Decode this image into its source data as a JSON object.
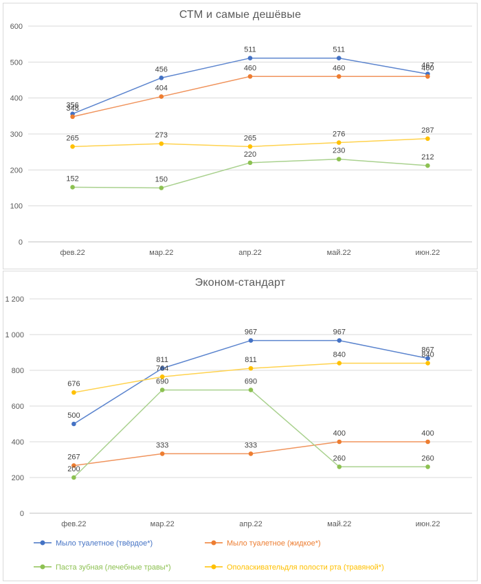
{
  "page": {
    "background": "#FFFFFF",
    "panel_border": "#D9D9D9",
    "grid_color": "#D9D9D9",
    "axis_line_color": "#BFBFBF",
    "title_color": "#595959",
    "tick_color": "#595959",
    "data_label_color": "#404040"
  },
  "categories": [
    "фев.22",
    "мар.22",
    "апр.22",
    "май.22",
    "июн.22"
  ],
  "legend": {
    "items": [
      {
        "label": "Мыло туалетное (твёрдое*)",
        "color": "#4472C4"
      },
      {
        "label": "Мыло туалетное (жидкое*)",
        "color": "#ED7D31"
      },
      {
        "label": "Паста зубная (лечебные травы*)",
        "color": "#8DC152"
      },
      {
        "label": "Ополаскивательдля полости рта (травяной*)",
        "color": "#FFC000"
      }
    ]
  },
  "chart_data": [
    {
      "type": "line",
      "title": "СТМ и самые дешёвые",
      "categories": [
        "фев.22",
        "мар.22",
        "апр.22",
        "май.22",
        "июн.22"
      ],
      "ylim": [
        0,
        600
      ],
      "ytick_step": 100,
      "yticks": [
        "0",
        "100",
        "200",
        "300",
        "400",
        "500",
        "600"
      ],
      "grid": true,
      "legend_position": "none",
      "series": [
        {
          "name": "Мыло туалетное (твёрдое*)",
          "color": "#4472C4",
          "line_color": "#5B84CE",
          "values": [
            356,
            456,
            511,
            511,
            467
          ]
        },
        {
          "name": "Мыло туалетное (жидкое*)",
          "color": "#ED7D31",
          "line_color": "#F0935C",
          "values": [
            348,
            404,
            460,
            460,
            460
          ]
        },
        {
          "name": "Паста зубная (лечебные травы*)",
          "color": "#8DC152",
          "line_color": "#A9D18E",
          "values": [
            152,
            150,
            220,
            230,
            212
          ]
        },
        {
          "name": "Ополаскивательдля полости рта (травяной*)",
          "color": "#FFC000",
          "line_color": "#FFD24D",
          "values": [
            265,
            273,
            265,
            276,
            287
          ]
        }
      ]
    },
    {
      "type": "line",
      "title": "Эконом-стандарт",
      "categories": [
        "фев.22",
        "мар.22",
        "апр.22",
        "май.22",
        "июн.22"
      ],
      "ylim": [
        0,
        1200
      ],
      "ytick_step": 200,
      "yticks": [
        "0",
        "200",
        "400",
        "600",
        "800",
        "1 000",
        "1 200"
      ],
      "grid": true,
      "legend_position": "bottom",
      "series": [
        {
          "name": "Мыло туалетное (твёрдое*)",
          "color": "#4472C4",
          "line_color": "#5B84CE",
          "values": [
            500,
            811,
            967,
            967,
            867
          ]
        },
        {
          "name": "Мыло туалетное (жидкое*)",
          "color": "#ED7D31",
          "line_color": "#F0935C",
          "values": [
            267,
            333,
            333,
            400,
            400
          ]
        },
        {
          "name": "Паста зубная (лечебные травы*)",
          "color": "#8DC152",
          "line_color": "#A9D18E",
          "values": [
            200,
            690,
            690,
            260,
            260
          ]
        },
        {
          "name": "Ополаскивательдля полости рта (травяной*)",
          "color": "#FFC000",
          "line_color": "#FFD24D",
          "values": [
            676,
            764,
            811,
            840,
            840
          ]
        }
      ]
    }
  ]
}
